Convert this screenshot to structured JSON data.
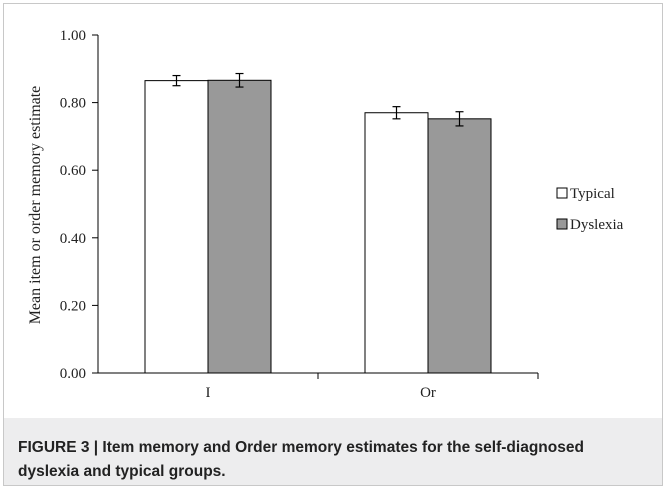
{
  "chart_data": {
    "type": "bar",
    "categories": [
      "I",
      "Or"
    ],
    "series": [
      {
        "name": "Typical",
        "values": [
          0.865,
          0.77
        ],
        "errors": [
          0.015,
          0.018
        ],
        "color": "#ffffff"
      },
      {
        "name": "Dyslexia",
        "values": [
          0.866,
          0.752
        ],
        "errors": [
          0.02,
          0.021
        ],
        "color": "#999999"
      }
    ],
    "ylabel": "Mean item or order memory estimate",
    "xlabel": "",
    "ylim": [
      0,
      1.0
    ],
    "yticks": [
      "0.00",
      "0.20",
      "0.40",
      "0.60",
      "0.80",
      "1.00"
    ],
    "legend_position": "right",
    "grid": false
  },
  "caption": "FIGURE 3 | Item memory and Order memory estimates for the self-diagnosed dyslexia and typical groups."
}
